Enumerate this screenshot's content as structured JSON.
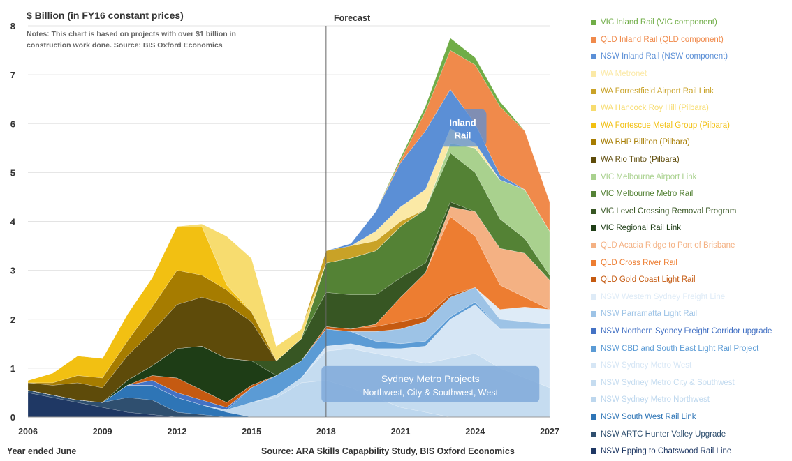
{
  "chart_data": {
    "type": "area",
    "stacked": true,
    "ylabel": "$ Billion (in FY16 constant prices)",
    "notes": "Notes: This chart is based on projects with over $1 billion in construction work done. Source: BIS Oxford Economics",
    "forecast_label": "Forecast",
    "forecast_start": 2018,
    "xlabel": "Year ended June",
    "source": "Source:  ARA Skills Capapbility Study, BIS Oxford Economics",
    "ylim": [
      0,
      8
    ],
    "yticks": [
      0,
      1,
      2,
      3,
      4,
      5,
      6,
      7,
      8
    ],
    "xticks": [
      2006,
      2009,
      2012,
      2015,
      2018,
      2021,
      2024,
      2027
    ],
    "x": [
      2006,
      2007,
      2008,
      2009,
      2010,
      2011,
      2012,
      2013,
      2014,
      2015,
      2016,
      2017,
      2018,
      2019,
      2020,
      2021,
      2022,
      2023,
      2024,
      2025,
      2026,
      2027
    ],
    "annotations": [
      {
        "text": "Inland",
        "text2": "Rail",
        "x": 2023.5,
        "y": 5.9
      },
      {
        "text": "Sydney Metro Projects",
        "text2": "Northwest, City & Southwest, West",
        "x": 2022.2,
        "y": 0.6
      }
    ],
    "series": [
      {
        "name": "NSW Epping to Chatswood Rail Line",
        "color": "#1f3864",
        "values": [
          0.5,
          0.4,
          0.3,
          0.2,
          0.1,
          0.05,
          0,
          0,
          0,
          0,
          0,
          0,
          0,
          0,
          0,
          0,
          0,
          0,
          0,
          0,
          0,
          0
        ]
      },
      {
        "name": "NSW ARTC Hunter Valley Upgrade",
        "color": "#2f4f6f",
        "values": [
          0.05,
          0.05,
          0.05,
          0.1,
          0.3,
          0.3,
          0.1,
          0.05,
          0,
          0,
          0,
          0,
          0,
          0,
          0,
          0,
          0,
          0,
          0,
          0,
          0,
          0
        ]
      },
      {
        "name": "NSW South West Rail Link",
        "color": "#2e75b6",
        "values": [
          0,
          0,
          0,
          0,
          0.25,
          0.3,
          0.3,
          0.2,
          0.1,
          0,
          0,
          0,
          0,
          0,
          0,
          0,
          0,
          0,
          0,
          0,
          0,
          0
        ]
      },
      {
        "name": "NSW Sydney Metro Northwest",
        "color": "#bdd7ee",
        "values": [
          0,
          0,
          0,
          0,
          0,
          0,
          0,
          0,
          0.05,
          0.3,
          0.4,
          0.7,
          0.75,
          0.6,
          0.4,
          0.2,
          0.1,
          0,
          0,
          0,
          0,
          0
        ]
      },
      {
        "name": "NSW Sydney Metro City & Southwest",
        "color": "#c5dcf0",
        "values": [
          0,
          0,
          0,
          0,
          0,
          0,
          0,
          0,
          0,
          0,
          0.05,
          0.1,
          0.6,
          0.8,
          0.9,
          1.0,
          1.0,
          1.2,
          1.3,
          1.0,
          0.8,
          0.6
        ]
      },
      {
        "name": "NSW Sydney Metro West",
        "color": "#d6e6f5",
        "values": [
          0,
          0,
          0,
          0,
          0,
          0,
          0,
          0,
          0,
          0,
          0,
          0,
          0.1,
          0.1,
          0.1,
          0.2,
          0.35,
          0.8,
          1.0,
          0.8,
          1.0,
          1.2
        ]
      },
      {
        "name": "NSW CBD and South East Light Rail Project",
        "color": "#5b9bd5",
        "values": [
          0,
          0,
          0,
          0,
          0,
          0,
          0,
          0,
          0,
          0.3,
          0.4,
          0.35,
          0.35,
          0.25,
          0.15,
          0.1,
          0.1,
          0.05,
          0.05,
          0,
          0,
          0
        ]
      },
      {
        "name": "NSW Northern Sydney Freight Corridor upgrade",
        "color": "#4472c4",
        "values": [
          0,
          0,
          0,
          0,
          0,
          0.1,
          0.1,
          0.1,
          0.05,
          0,
          0,
          0,
          0,
          0,
          0,
          0,
          0,
          0,
          0,
          0,
          0,
          0
        ]
      },
      {
        "name": "NSW Parramatta Light Rail",
        "color": "#9dc3e6",
        "values": [
          0,
          0,
          0,
          0,
          0,
          0,
          0,
          0,
          0,
          0,
          0,
          0,
          0,
          0,
          0.2,
          0.3,
          0.4,
          0.4,
          0.3,
          0.2,
          0.15,
          0.1
        ]
      },
      {
        "name": "NSW Western Sydney Freight Line",
        "color": "#deebf7",
        "values": [
          0,
          0,
          0,
          0,
          0,
          0,
          0,
          0,
          0,
          0,
          0,
          0,
          0,
          0,
          0,
          0,
          0,
          0,
          0,
          0.2,
          0.3,
          0.3
        ]
      },
      {
        "name": "QLD Gold Coast Light Rail",
        "color": "#c55a11",
        "values": [
          0,
          0,
          0,
          0,
          0,
          0.1,
          0.3,
          0.2,
          0.1,
          0.05,
          0,
          0,
          0.05,
          0.05,
          0.1,
          0.15,
          0.1,
          0.05,
          0,
          0,
          0,
          0
        ]
      },
      {
        "name": "QLD Cross River Rail",
        "color": "#ed7d31",
        "values": [
          0,
          0,
          0,
          0,
          0,
          0,
          0,
          0,
          0,
          0,
          0,
          0,
          0,
          0,
          0.05,
          0.5,
          0.9,
          1.6,
          1.05,
          0.5,
          0.2,
          0
        ]
      },
      {
        "name": "QLD Acacia Ridge to Port of Brisbane",
        "color": "#f4b183",
        "values": [
          0,
          0,
          0,
          0,
          0,
          0,
          0,
          0,
          0,
          0,
          0,
          0,
          0,
          0,
          0,
          0,
          0,
          0.2,
          0.5,
          0.75,
          0.9,
          0.6
        ]
      },
      {
        "name": "VIC Regional Rail Link",
        "color": "#1e3d16",
        "values": [
          0,
          0,
          0,
          0,
          0.1,
          0.2,
          0.6,
          0.9,
          0.9,
          0.5,
          0,
          0,
          0,
          0,
          0,
          0,
          0,
          0,
          0,
          0,
          0,
          0
        ]
      },
      {
        "name": "VIC Level Crossing Removal Program",
        "color": "#375623",
        "values": [
          0,
          0,
          0,
          0,
          0,
          0,
          0,
          0,
          0,
          0,
          0.3,
          0.45,
          0.7,
          0.7,
          0.6,
          0.4,
          0.2,
          0.1,
          0,
          0,
          0,
          0
        ]
      },
      {
        "name": "VIC Melbourne Metro Rail",
        "color": "#548235",
        "values": [
          0,
          0,
          0,
          0,
          0,
          0,
          0,
          0,
          0,
          0,
          0,
          0,
          0.6,
          0.75,
          0.9,
          1.05,
          1.1,
          1.0,
          0.8,
          0.6,
          0.3,
          0.1
        ]
      },
      {
        "name": "VIC Melbourne Airport Link",
        "color": "#a9d18e",
        "values": [
          0,
          0,
          0,
          0,
          0,
          0,
          0,
          0,
          0,
          0,
          0,
          0,
          0,
          0,
          0,
          0,
          0,
          0.2,
          0.5,
          0.8,
          1.0,
          0.9
        ]
      },
      {
        "name": "WA Rio Tinto (Pilbara)",
        "color": "#5e4b0a",
        "values": [
          0.15,
          0.2,
          0.35,
          0.3,
          0.5,
          0.7,
          0.9,
          1.0,
          1.1,
          0.8,
          0,
          0,
          0,
          0,
          0,
          0,
          0,
          0,
          0,
          0,
          0,
          0
        ]
      },
      {
        "name": "WA BHP Billiton (Pilbara)",
        "color": "#a67c00",
        "values": [
          0,
          0.05,
          0.15,
          0.2,
          0.3,
          0.5,
          0.7,
          0.45,
          0.3,
          0.2,
          0,
          0,
          0,
          0,
          0,
          0,
          0,
          0,
          0,
          0,
          0,
          0
        ]
      },
      {
        "name": "WA Fortescue Metal Group (Pilbara)",
        "color": "#f2c012",
        "values": [
          0.05,
          0.2,
          0.4,
          0.4,
          0.55,
          0.6,
          0.9,
          1.0,
          0.1,
          0,
          0,
          0,
          0,
          0,
          0,
          0,
          0,
          0,
          0,
          0,
          0,
          0
        ]
      },
      {
        "name": "WA Hancock Roy Hill (Pilbara)",
        "color": "#f7dc6f",
        "values": [
          0,
          0,
          0,
          0,
          0,
          0,
          0,
          0.05,
          1.0,
          1.1,
          0.3,
          0.2,
          0,
          0,
          0,
          0,
          0,
          0,
          0,
          0,
          0,
          0
        ]
      },
      {
        "name": "WA Forrestfield Airport Rail Link",
        "color": "#c9a227",
        "values": [
          0,
          0,
          0,
          0,
          0,
          0,
          0,
          0,
          0,
          0,
          0,
          0,
          0.25,
          0.25,
          0.2,
          0.1,
          0,
          0,
          0,
          0,
          0,
          0
        ]
      },
      {
        "name": "WA Metronet",
        "color": "#fbe9a6",
        "values": [
          0,
          0,
          0,
          0,
          0,
          0,
          0,
          0,
          0,
          0,
          0,
          0,
          0,
          0,
          0.2,
          0.3,
          0.4,
          0.3,
          0.1,
          0,
          0,
          0
        ]
      },
      {
        "name": "NSW Inland Rail (NSW component)",
        "color": "#5b8fd6",
        "values": [
          0,
          0,
          0,
          0,
          0,
          0,
          0,
          0,
          0,
          0,
          0,
          0,
          0,
          0.05,
          0.4,
          0.9,
          1.2,
          0.8,
          0.4,
          0.1,
          0,
          0
        ]
      },
      {
        "name": "QLD Inland Rail (QLD component)",
        "color": "#f08a4b",
        "values": [
          0,
          0,
          0,
          0,
          0,
          0,
          0,
          0,
          0,
          0,
          0,
          0,
          0,
          0,
          0,
          0.05,
          0.4,
          0.8,
          1.2,
          1.4,
          1.2,
          0.6
        ]
      },
      {
        "name": "VIC Inland Rail (VIC component)",
        "color": "#70ad47",
        "values": [
          0,
          0,
          0,
          0,
          0,
          0,
          0,
          0,
          0,
          0,
          0,
          0,
          0,
          0,
          0,
          0.05,
          0.1,
          0.25,
          0.15,
          0.1,
          0,
          0
        ]
      }
    ]
  }
}
